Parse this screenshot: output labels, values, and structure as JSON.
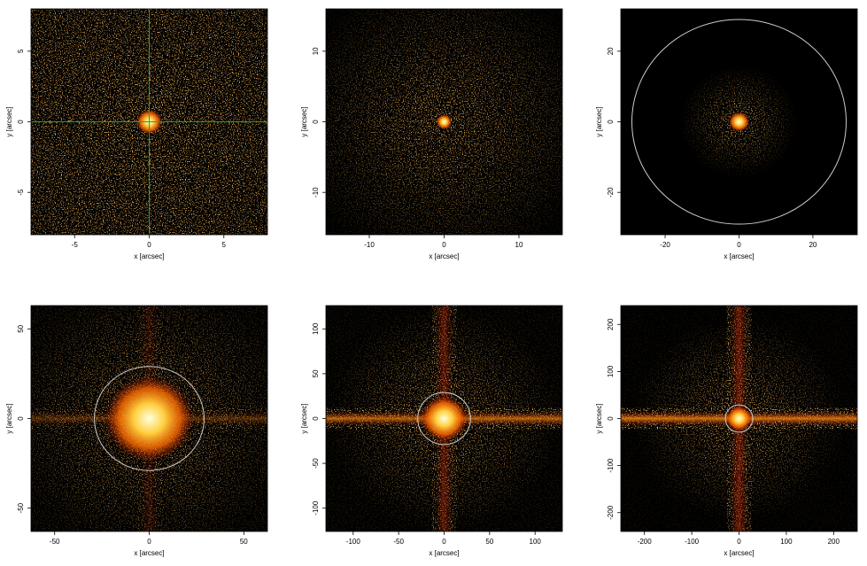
{
  "chart_data": [
    {
      "type": "image",
      "xlabel": "x [arcsec]",
      "ylabel": "y [arcsec]",
      "xlim": [
        -7.92,
        7.92
      ],
      "ylim": [
        -8,
        8
      ],
      "xticks": [
        -5,
        0,
        5
      ],
      "yticks": [
        -5,
        0,
        5
      ],
      "crosshair": {
        "x": 0,
        "y": 0,
        "color": "#2e9e2e"
      }
    },
    {
      "type": "image",
      "xlabel": "x [arcsec]",
      "ylabel": "y [arcsec]",
      "xlim": [
        -15.8,
        15.8
      ],
      "ylim": [
        -16,
        16
      ],
      "xticks": [
        -10,
        0,
        10
      ],
      "yticks": [
        -10,
        0,
        10
      ]
    },
    {
      "type": "image",
      "xlabel": "x [arcsec]",
      "ylabel": "y [arcsec]",
      "xlim": [
        -32,
        32
      ],
      "ylim": [
        -32,
        32
      ],
      "xticks": [
        -20,
        0,
        20
      ],
      "yticks": [
        -20,
        0,
        20
      ],
      "circle": {
        "x": 0,
        "y": 0,
        "r": 29,
        "color": "#cccccc"
      }
    },
    {
      "type": "image",
      "xlabel": "x [arcsec]",
      "ylabel": "y [arcsec]",
      "xlim": [
        -62.5,
        62.5
      ],
      "ylim": [
        -63,
        63
      ],
      "xticks": [
        -50,
        0,
        50
      ],
      "yticks": [
        -50,
        0,
        50
      ],
      "circle": {
        "x": 0,
        "y": 0,
        "r": 29,
        "color": "#cccccc"
      }
    },
    {
      "type": "image",
      "xlabel": "x [arcsec]",
      "ylabel": "y [arcsec]",
      "xlim": [
        -130,
        130
      ],
      "ylim": [
        -126,
        126
      ],
      "xticks": [
        -100,
        -50,
        0,
        50,
        100
      ],
      "yticks": [
        -100,
        -50,
        0,
        50,
        100
      ],
      "circle": {
        "x": 0,
        "y": 0,
        "r": 29,
        "color": "#cccccc"
      }
    },
    {
      "type": "image",
      "xlabel": "x [arcsec]",
      "ylabel": "y [arcsec]",
      "xlim": [
        -250,
        250
      ],
      "ylim": [
        -240,
        240
      ],
      "xticks": [
        -200,
        -100,
        0,
        100,
        200
      ],
      "yticks": [
        -200,
        -100,
        0,
        100,
        200
      ],
      "circle": {
        "x": 0,
        "y": 0,
        "r": 29,
        "color": "#cccccc"
      }
    }
  ]
}
